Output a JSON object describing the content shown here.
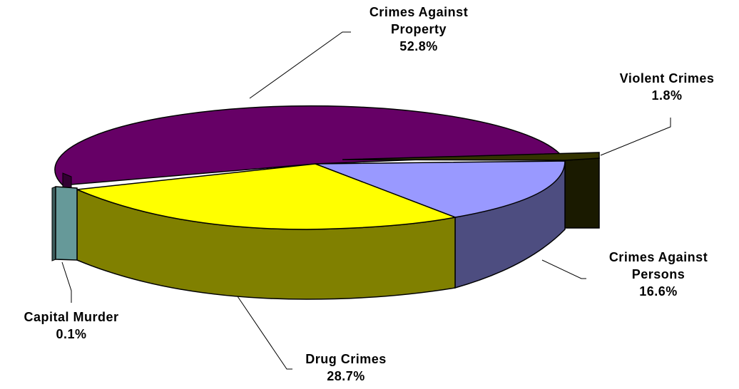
{
  "chart_data": {
    "type": "pie",
    "style": "3d-exploded",
    "slices": [
      {
        "label_lines": [
          "Crimes Against",
          "Property"
        ],
        "value_label": "52.8%",
        "value": 52.8,
        "color": "#660066"
      },
      {
        "label_lines": [
          "Violent Crimes"
        ],
        "value_label": "1.8%",
        "value": 1.8,
        "color": "#333300"
      },
      {
        "label_lines": [
          "Crimes Against",
          "Persons"
        ],
        "value_label": "16.6%",
        "value": 16.6,
        "color": "#9999FF"
      },
      {
        "label_lines": [
          "Drug Crimes"
        ],
        "value_label": "28.7%",
        "value": 28.7,
        "color": "#FFFF00"
      },
      {
        "label_lines": [
          "Capital Murder"
        ],
        "value_label": "0.1%",
        "value": 0.1,
        "color": "#669999"
      }
    ],
    "legend": "none"
  }
}
